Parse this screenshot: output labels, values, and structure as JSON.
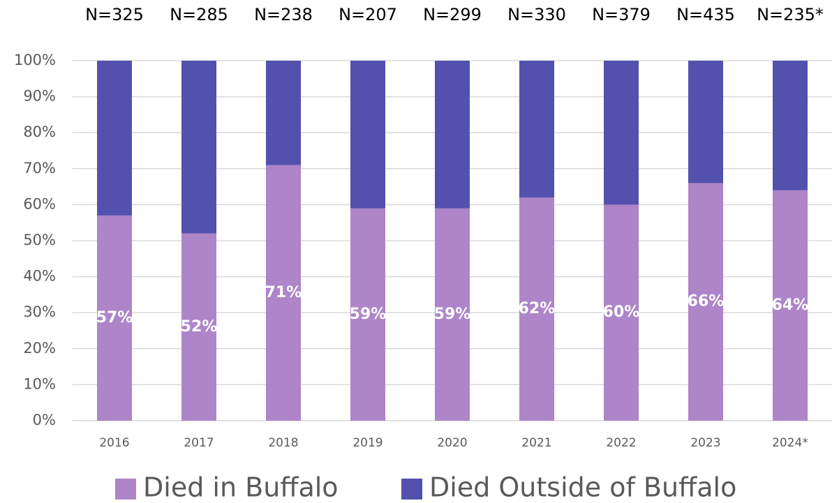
{
  "chart_data": {
    "type": "stacked_bar",
    "categories": [
      "2016",
      "2017",
      "2018",
      "2019",
      "2020",
      "2021",
      "2022",
      "2023",
      "2024*"
    ],
    "annotations": [
      "N=325",
      "N=285",
      "N=238",
      "N=207",
      "N=299",
      "N=330",
      "N=379",
      "N=435",
      "N=235*"
    ],
    "series": [
      {
        "name": "Died in Buffalo",
        "color": "#ad85c8",
        "values": [
          57,
          52,
          71,
          59,
          59,
          62,
          60,
          66,
          64
        ],
        "value_labels": [
          "57%",
          "52%",
          "71%",
          "59%",
          "59%",
          "62%",
          "60%",
          "66%",
          "64%"
        ]
      },
      {
        "name": "Died Outside of Buffalo",
        "color": "#5450ae",
        "values": [
          43,
          48,
          29,
          41,
          41,
          38,
          40,
          34,
          36
        ]
      }
    ],
    "ylim": [
      0,
      100
    ],
    "yticks": [
      {
        "value": 0,
        "label": "0%"
      },
      {
        "value": 10,
        "label": "10%"
      },
      {
        "value": 20,
        "label": "20%"
      },
      {
        "value": 30,
        "label": "30%"
      },
      {
        "value": 40,
        "label": "40%"
      },
      {
        "value": 50,
        "label": "50%"
      },
      {
        "value": 60,
        "label": "60%"
      },
      {
        "value": 70,
        "label": "70%"
      },
      {
        "value": 80,
        "label": "80%"
      },
      {
        "value": 90,
        "label": "90%"
      },
      {
        "value": 100,
        "label": "100%"
      }
    ],
    "grid": true,
    "legend": "bottom"
  }
}
